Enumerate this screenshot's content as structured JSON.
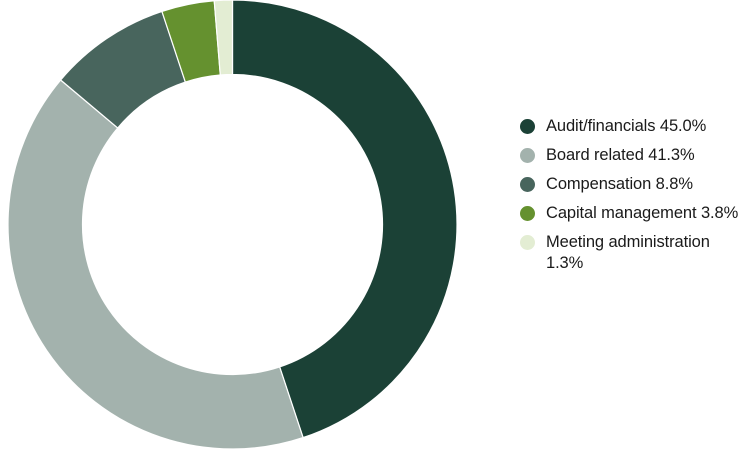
{
  "chart_data": {
    "type": "pie",
    "subtype": "donut",
    "title": "",
    "categories": [
      "Audit/financials",
      "Board related",
      "Compensation",
      "Capital management",
      "Meeting administration"
    ],
    "values": [
      45.0,
      41.3,
      8.8,
      3.8,
      1.3
    ],
    "unit": "%",
    "colors": [
      "#1b4136",
      "#a3b2ad",
      "#48655d",
      "#65912f",
      "#e3edd3"
    ],
    "start_angle_deg": 0,
    "direction": "clockwise",
    "legend_position": "right"
  },
  "legend": {
    "items": [
      {
        "label": "Audit/financials 45.0%",
        "color": "#1b4136"
      },
      {
        "label": "Board related 41.3%",
        "color": "#a3b2ad"
      },
      {
        "label": "Compensation 8.8%",
        "color": "#48655d"
      },
      {
        "label": "Capital management 3.8%",
        "color": "#65912f"
      },
      {
        "label": "Meeting administration 1.3%",
        "color": "#e3edd3"
      }
    ]
  }
}
